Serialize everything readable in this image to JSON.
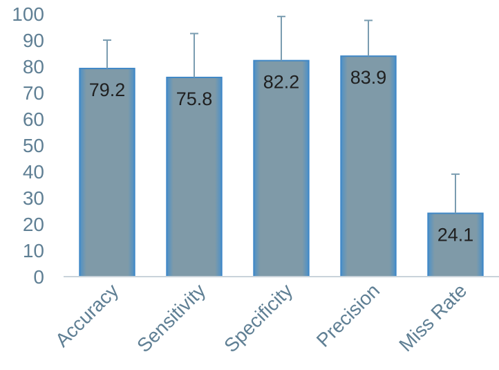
{
  "chart_data": {
    "type": "bar",
    "categories": [
      "Accuracy",
      "Sensitivity",
      "Specificity",
      "Precision",
      "Miss Rate"
    ],
    "values": [
      79.2,
      75.8,
      82.2,
      83.9,
      24.1
    ],
    "error_upper": [
      90.0,
      92.5,
      99.0,
      97.5,
      39.0
    ],
    "data_labels": [
      "79.2",
      "75.8",
      "82.2",
      "83.9",
      "24.1"
    ],
    "title": "",
    "xlabel": "",
    "ylabel": "",
    "ylim": [
      0,
      100
    ],
    "yticks": [
      "0",
      "10",
      "20",
      "30",
      "40",
      "50",
      "60",
      "70",
      "80",
      "90",
      "100"
    ],
    "grid": false,
    "legend": false,
    "colors": {
      "bar_fill_center": "#7f9aa8",
      "bar_fill_edge": "#4d91c8",
      "bar_outline": "#3f87c6",
      "axis": "#c9d3da",
      "error_bar": "#7a9cb0",
      "tick_text": "#5f7f94",
      "data_label_text": "#1f1f1f"
    }
  }
}
